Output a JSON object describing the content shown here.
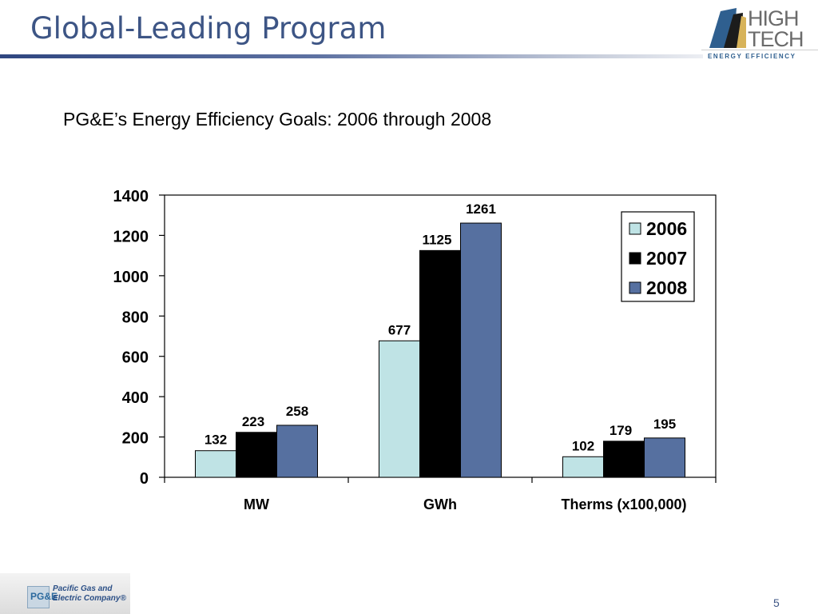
{
  "slide": {
    "title": "Global-Leading Program",
    "subtitle": "PG&E’s Energy Efficiency Goals: 2006 through 2008",
    "page_number": "5"
  },
  "logo": {
    "line1": "HIGH",
    "line2": "TECH",
    "tagline": "ENERGY EFFICIENCY",
    "colors": {
      "text": "#6b6b6b",
      "accent": "#2f5f8f",
      "gold": "#d7b35a"
    }
  },
  "footer_logo": {
    "initials": "PG&E",
    "line1": "Pacific Gas and",
    "line2": "Electric Company®"
  },
  "chart_data": {
    "type": "bar",
    "categories": [
      "MW",
      "GWh",
      "Therms (x100,000)"
    ],
    "series": [
      {
        "name": "2006",
        "values": [
          132,
          677,
          102
        ],
        "color": "#bfe3e5"
      },
      {
        "name": "2007",
        "values": [
          223,
          1125,
          179
        ],
        "color": "#000000"
      },
      {
        "name": "2008",
        "values": [
          258,
          1261,
          195
        ],
        "color": "#5670a0"
      }
    ],
    "ylim": [
      0,
      1400
    ],
    "yticks": [
      0,
      200,
      400,
      600,
      800,
      1000,
      1200,
      1400
    ],
    "grid": false,
    "legend_position": "top-right",
    "data_labels": true
  }
}
